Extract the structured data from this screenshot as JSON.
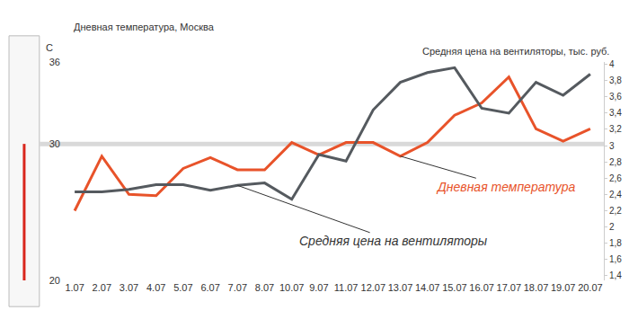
{
  "chart_data": {
    "type": "line",
    "title": "Дневная температура, Москва",
    "ylabel": "С",
    "y2label": "Средняя цена на вентиляторы, тыс. руб.",
    "categories": [
      "1.07",
      "2.07",
      "3.07",
      "4.07",
      "5.07",
      "6.07",
      "7.07",
      "8.07",
      "10.07",
      "9.07",
      "11.07",
      "12.07",
      "13.07",
      "14.07",
      "15.07",
      "16.07",
      "17.07",
      "18.07",
      "19.07",
      "20.07"
    ],
    "series": [
      {
        "name": "Дневная температура",
        "color": "#e8532a",
        "axis": "y",
        "values": [
          25.1,
          29.1,
          26.3,
          26.2,
          28.2,
          29.0,
          28.1,
          28.1,
          30.1,
          29.2,
          30.1,
          30.1,
          29.1,
          30.1,
          32.1,
          33.0,
          34.9,
          31.1,
          30.2,
          31.1
        ]
      },
      {
        "name": "Средняя цена на вентиляторы",
        "color": "#555a5f",
        "axis": "y2",
        "values": [
          2.43,
          2.43,
          2.46,
          2.52,
          2.52,
          2.45,
          2.51,
          2.54,
          2.34,
          2.89,
          2.81,
          3.44,
          3.78,
          3.9,
          3.96,
          3.46,
          3.4,
          3.78,
          3.62,
          3.88
        ]
      }
    ],
    "ylim": [
      20,
      36
    ],
    "yticks": [
      20,
      30,
      36
    ],
    "y2lim": [
      1.34,
      4.03
    ],
    "y2ticks": [
      {
        "value": 1.4,
        "label": "1,4"
      },
      {
        "value": 1.6,
        "label": "1,6"
      },
      {
        "value": 1.8,
        "label": "1,8"
      },
      2,
      {
        "value": 2.2,
        "label": "2,2"
      },
      {
        "value": 2.4,
        "label": "2,4"
      },
      {
        "value": 2.6,
        "label": "2,6"
      },
      {
        "value": 2.8,
        "label": "2,8"
      },
      3,
      {
        "value": 3.2,
        "label": "3,2"
      },
      {
        "value": 3.4,
        "label": "3,4"
      },
      {
        "value": 3.6,
        "label": "3,6"
      },
      {
        "value": 3.8,
        "label": "3,8"
      },
      4
    ],
    "reference_line": 30,
    "grid": false
  }
}
